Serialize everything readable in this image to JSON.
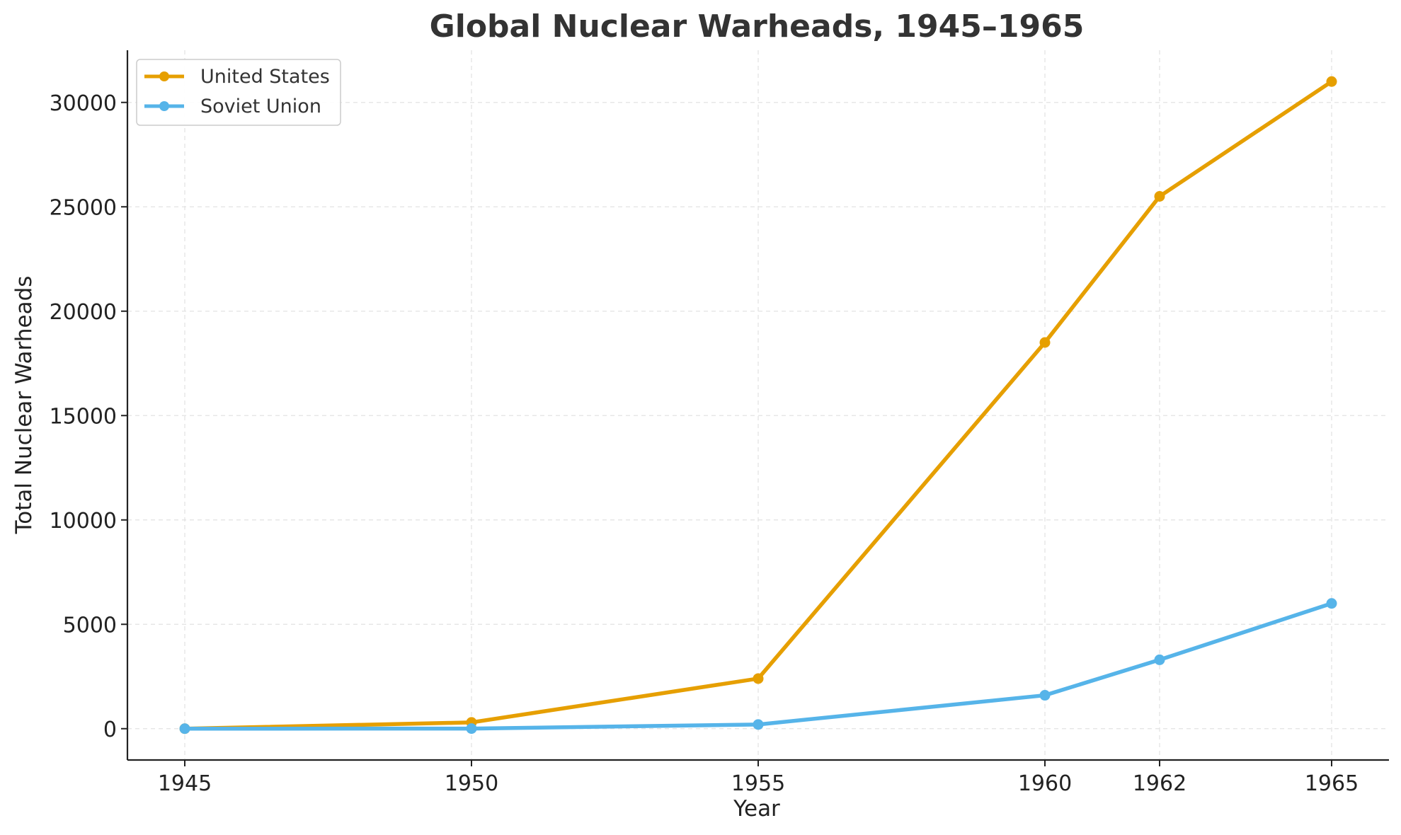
{
  "chart_data": {
    "type": "line",
    "title": "Global Nuclear Warheads, 1945–1965",
    "xlabel": "Year",
    "ylabel": "Total Nuclear Warheads",
    "x": [
      1945,
      1950,
      1955,
      1960,
      1962,
      1965
    ],
    "x_tick_labels": [
      "1945",
      "1950",
      "1955",
      "1960",
      "1962",
      "1965"
    ],
    "xlim": [
      1944,
      1966
    ],
    "ylim": [
      -1500,
      32500
    ],
    "y_ticks": [
      0,
      5000,
      10000,
      15000,
      20000,
      25000,
      30000
    ],
    "y_tick_labels": [
      "0",
      "5000",
      "10000",
      "15000",
      "20000",
      "25000",
      "30000"
    ],
    "grid": true,
    "legend_position": "top-left",
    "series": [
      {
        "name": "United States",
        "color": "#E69F00",
        "values": [
          2,
          300,
          2400,
          18500,
          25500,
          31000
        ]
      },
      {
        "name": "Soviet Union",
        "color": "#56B4E9",
        "values": [
          0,
          5,
          200,
          1600,
          3300,
          6000
        ]
      }
    ]
  }
}
